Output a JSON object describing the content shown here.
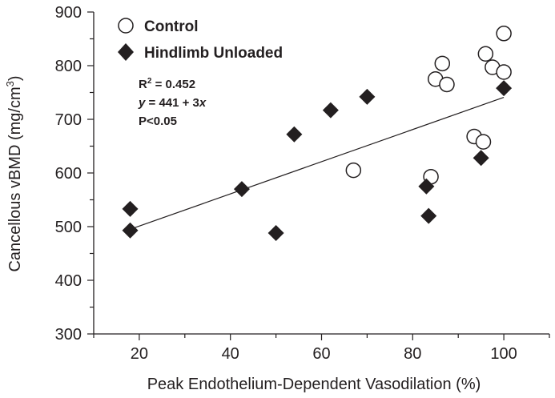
{
  "chart_data": {
    "type": "scatter",
    "xlabel": "Peak Endothelium-Dependent Vasodilation (%)",
    "ylabel_main": "Cancellous vBMD (mg/cm",
    "ylabel_sup": "3",
    "ylabel_close": ")",
    "xlim": [
      10,
      110
    ],
    "ylim": [
      300,
      900
    ],
    "xticks": [
      20,
      40,
      60,
      80,
      100
    ],
    "yticks": [
      300,
      400,
      500,
      600,
      700,
      800,
      900
    ],
    "x_minor_step": 10,
    "y_minor_step": 50,
    "grid": false,
    "legend_position": "top-left",
    "series": [
      {
        "name": "Control",
        "marker": "open-circle",
        "color": "#231f20",
        "points": [
          {
            "x": 100,
            "y": 860
          },
          {
            "x": 96,
            "y": 822
          },
          {
            "x": 86.5,
            "y": 804
          },
          {
            "x": 97.5,
            "y": 797
          },
          {
            "x": 100,
            "y": 788
          },
          {
            "x": 85,
            "y": 775
          },
          {
            "x": 87.5,
            "y": 765
          },
          {
            "x": 93.5,
            "y": 668
          },
          {
            "x": 95.5,
            "y": 658
          },
          {
            "x": 67,
            "y": 605
          },
          {
            "x": 84,
            "y": 593
          }
        ]
      },
      {
        "name": "Hindlimb Unloaded",
        "marker": "filled-diamond",
        "color": "#231f20",
        "points": [
          {
            "x": 100,
            "y": 758
          },
          {
            "x": 70,
            "y": 742
          },
          {
            "x": 62,
            "y": 717
          },
          {
            "x": 54,
            "y": 672
          },
          {
            "x": 95,
            "y": 628
          },
          {
            "x": 42.5,
            "y": 570
          },
          {
            "x": 83,
            "y": 575
          },
          {
            "x": 18,
            "y": 533
          },
          {
            "x": 83.5,
            "y": 520
          },
          {
            "x": 18,
            "y": 493
          },
          {
            "x": 50,
            "y": 488
          }
        ]
      }
    ],
    "regression": {
      "intercept": 441,
      "slope": 3,
      "x_range": [
        18,
        100
      ]
    },
    "annotations": {
      "r2_base": "R",
      "r2_sup": "2",
      "r2_rest": " = 0.452",
      "eq_y": "y",
      "eq_mid": " = 441 + 3",
      "eq_x": "x",
      "p_value": "P<0.05"
    }
  }
}
